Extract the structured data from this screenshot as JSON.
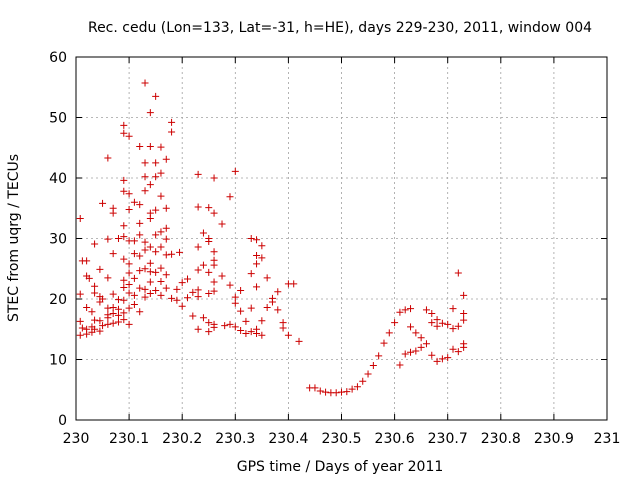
{
  "chart_data": {
    "type": "scatter",
    "title": "Rec. cedu (Lon=133, Lat=-31, h=HE), days 229-230, 2011, window 004",
    "xlabel": "GPS time / Days of year 2011",
    "ylabel": "STEC from uqrg / TECUs",
    "xlim": [
      230,
      231
    ],
    "ylim": [
      0,
      60
    ],
    "xticks": [
      230,
      230.1,
      230.2,
      230.3,
      230.4,
      230.5,
      230.6,
      230.7,
      230.8,
      230.9,
      231
    ],
    "xtick_labels": [
      "230",
      "230.1",
      "230.2",
      "230.3",
      "230.4",
      "230.5",
      "230.6",
      "230.7",
      "230.8",
      "230.9",
      "231"
    ],
    "yticks": [
      0,
      10,
      20,
      30,
      40,
      50,
      60
    ],
    "ytick_labels": [
      "0",
      "10",
      "20",
      "30",
      "40",
      "50",
      "60"
    ],
    "grid": true,
    "marker": "+",
    "color": "#cc0000",
    "points": [
      [
        230.008,
        33.3
      ],
      [
        230.008,
        20.8
      ],
      [
        230.008,
        16.3
      ],
      [
        230.008,
        14.0
      ],
      [
        230.012,
        26.3
      ],
      [
        230.012,
        15.2
      ],
      [
        230.02,
        26.3
      ],
      [
        230.02,
        23.8
      ],
      [
        230.02,
        18.6
      ],
      [
        230.02,
        15.0
      ],
      [
        230.02,
        14.2
      ],
      [
        230.025,
        23.4
      ],
      [
        230.03,
        17.9
      ],
      [
        230.03,
        15.4
      ],
      [
        230.03,
        14.5
      ],
      [
        230.035,
        29.1
      ],
      [
        230.035,
        22.1
      ],
      [
        230.035,
        21.0
      ],
      [
        230.035,
        16.5
      ],
      [
        230.035,
        15.0
      ],
      [
        230.045,
        24.9
      ],
      [
        230.045,
        20.4
      ],
      [
        230.045,
        19.5
      ],
      [
        230.045,
        16.4
      ],
      [
        230.045,
        14.7
      ],
      [
        230.05,
        35.8
      ],
      [
        230.05,
        20.0
      ],
      [
        230.05,
        15.6
      ],
      [
        230.06,
        43.3
      ],
      [
        230.06,
        29.9
      ],
      [
        230.06,
        23.5
      ],
      [
        230.06,
        18.5
      ],
      [
        230.06,
        17.4
      ],
      [
        230.06,
        16.9
      ],
      [
        230.06,
        15.8
      ],
      [
        230.07,
        35.0
      ],
      [
        230.07,
        34.2
      ],
      [
        230.07,
        27.5
      ],
      [
        230.07,
        20.8
      ],
      [
        230.07,
        18.6
      ],
      [
        230.07,
        17.6
      ],
      [
        230.07,
        16.0
      ],
      [
        230.08,
        30.0
      ],
      [
        230.08,
        19.9
      ],
      [
        230.08,
        18.3
      ],
      [
        230.08,
        17.3
      ],
      [
        230.08,
        16.2
      ],
      [
        230.09,
        48.7
      ],
      [
        230.09,
        47.4
      ],
      [
        230.09,
        39.6
      ],
      [
        230.09,
        37.8
      ],
      [
        230.09,
        32.1
      ],
      [
        230.09,
        30.3
      ],
      [
        230.09,
        26.6
      ],
      [
        230.09,
        23.1
      ],
      [
        230.09,
        21.9
      ],
      [
        230.09,
        19.8
      ],
      [
        230.09,
        17.7
      ],
      [
        230.09,
        16.6
      ],
      [
        230.1,
        46.9
      ],
      [
        230.1,
        37.4
      ],
      [
        230.1,
        34.8
      ],
      [
        230.1,
        29.6
      ],
      [
        230.1,
        25.8
      ],
      [
        230.1,
        24.3
      ],
      [
        230.1,
        22.4
      ],
      [
        230.1,
        21.0
      ],
      [
        230.1,
        18.5
      ],
      [
        230.1,
        15.8
      ],
      [
        230.11,
        36.0
      ],
      [
        230.11,
        29.6
      ],
      [
        230.11,
        27.5
      ],
      [
        230.11,
        23.4
      ],
      [
        230.11,
        20.6
      ],
      [
        230.11,
        19.1
      ],
      [
        230.12,
        45.2
      ],
      [
        230.12,
        35.6
      ],
      [
        230.12,
        32.5
      ],
      [
        230.12,
        30.6
      ],
      [
        230.12,
        27.1
      ],
      [
        230.12,
        24.7
      ],
      [
        230.12,
        21.8
      ],
      [
        230.12,
        17.9
      ],
      [
        230.13,
        55.7
      ],
      [
        230.13,
        42.5
      ],
      [
        230.13,
        40.2
      ],
      [
        230.13,
        37.9
      ],
      [
        230.13,
        29.4
      ],
      [
        230.13,
        28.1
      ],
      [
        230.13,
        25.0
      ],
      [
        230.13,
        21.6
      ],
      [
        230.13,
        20.3
      ],
      [
        230.14,
        50.8
      ],
      [
        230.14,
        45.2
      ],
      [
        230.14,
        38.9
      ],
      [
        230.14,
        34.2
      ],
      [
        230.14,
        33.3
      ],
      [
        230.14,
        28.6
      ],
      [
        230.14,
        25.9
      ],
      [
        230.14,
        24.5
      ],
      [
        230.14,
        22.8
      ],
      [
        230.14,
        20.9
      ],
      [
        230.15,
        53.5
      ],
      [
        230.15,
        42.5
      ],
      [
        230.15,
        40.2
      ],
      [
        230.15,
        34.7
      ],
      [
        230.15,
        30.6
      ],
      [
        230.15,
        27.8
      ],
      [
        230.15,
        24.4
      ],
      [
        230.15,
        21.4
      ],
      [
        230.16,
        45.1
      ],
      [
        230.16,
        40.8
      ],
      [
        230.16,
        37.0
      ],
      [
        230.16,
        31.1
      ],
      [
        230.16,
        28.6
      ],
      [
        230.16,
        25.1
      ],
      [
        230.16,
        22.9
      ],
      [
        230.16,
        20.6
      ],
      [
        230.17,
        43.1
      ],
      [
        230.17,
        35.0
      ],
      [
        230.17,
        31.7
      ],
      [
        230.17,
        29.9
      ],
      [
        230.17,
        27.3
      ],
      [
        230.17,
        24.0
      ],
      [
        230.17,
        21.8
      ],
      [
        230.18,
        49.2
      ],
      [
        230.18,
        47.6
      ],
      [
        230.18,
        27.4
      ],
      [
        230.18,
        20.1
      ],
      [
        230.19,
        21.6
      ],
      [
        230.19,
        19.8
      ],
      [
        230.195,
        27.7
      ],
      [
        230.2,
        22.7
      ],
      [
        230.2,
        18.8
      ],
      [
        230.21,
        23.3
      ],
      [
        230.21,
        20.2
      ],
      [
        230.22,
        21.1
      ],
      [
        230.22,
        17.2
      ],
      [
        230.23,
        40.6
      ],
      [
        230.23,
        35.2
      ],
      [
        230.23,
        28.6
      ],
      [
        230.23,
        24.8
      ],
      [
        230.23,
        21.5
      ],
      [
        230.23,
        20.4
      ],
      [
        230.23,
        15.0
      ],
      [
        230.24,
        30.9
      ],
      [
        230.24,
        25.6
      ],
      [
        230.24,
        16.9
      ],
      [
        230.25,
        35.1
      ],
      [
        230.25,
        30.0
      ],
      [
        230.25,
        29.5
      ],
      [
        230.25,
        24.4
      ],
      [
        230.25,
        20.9
      ],
      [
        230.25,
        16.1
      ],
      [
        230.25,
        14.6
      ],
      [
        230.26,
        40.0
      ],
      [
        230.26,
        34.2
      ],
      [
        230.26,
        27.8
      ],
      [
        230.26,
        26.4
      ],
      [
        230.26,
        25.6
      ],
      [
        230.26,
        22.8
      ],
      [
        230.26,
        21.3
      ],
      [
        230.26,
        15.8
      ],
      [
        230.26,
        15.3
      ],
      [
        230.275,
        32.4
      ],
      [
        230.275,
        23.8
      ],
      [
        230.28,
        15.6
      ],
      [
        230.29,
        36.9
      ],
      [
        230.29,
        22.3
      ],
      [
        230.29,
        15.8
      ],
      [
        230.3,
        41.1
      ],
      [
        230.3,
        20.3
      ],
      [
        230.3,
        19.3
      ],
      [
        230.3,
        15.4
      ],
      [
        230.31,
        21.4
      ],
      [
        230.31,
        18.0
      ],
      [
        230.31,
        14.8
      ],
      [
        230.32,
        16.3
      ],
      [
        230.32,
        14.3
      ],
      [
        230.33,
        30.0
      ],
      [
        230.33,
        24.2
      ],
      [
        230.33,
        18.5
      ],
      [
        230.33,
        14.6
      ],
      [
        230.34,
        29.8
      ],
      [
        230.34,
        27.2
      ],
      [
        230.34,
        25.8
      ],
      [
        230.34,
        22.0
      ],
      [
        230.34,
        15.0
      ],
      [
        230.34,
        14.3
      ],
      [
        230.35,
        28.8
      ],
      [
        230.35,
        26.8
      ],
      [
        230.35,
        16.4
      ],
      [
        230.35,
        14.0
      ],
      [
        230.36,
        23.5
      ],
      [
        230.36,
        18.6
      ],
      [
        230.37,
        20.1
      ],
      [
        230.37,
        19.5
      ],
      [
        230.38,
        21.2
      ],
      [
        230.38,
        18.2
      ],
      [
        230.39,
        16.1
      ],
      [
        230.39,
        15.2
      ],
      [
        230.4,
        22.5
      ],
      [
        230.4,
        14.0
      ],
      [
        230.41,
        22.5
      ],
      [
        230.42,
        13.0
      ],
      [
        230.44,
        5.3
      ],
      [
        230.45,
        5.3
      ],
      [
        230.46,
        4.8
      ],
      [
        230.47,
        4.6
      ],
      [
        230.48,
        4.5
      ],
      [
        230.49,
        4.5
      ],
      [
        230.5,
        4.6
      ],
      [
        230.51,
        4.7
      ],
      [
        230.52,
        5.1
      ],
      [
        230.53,
        5.5
      ],
      [
        230.54,
        6.4
      ],
      [
        230.55,
        7.6
      ],
      [
        230.56,
        9.0
      ],
      [
        230.57,
        10.6
      ],
      [
        230.58,
        12.7
      ],
      [
        230.59,
        14.4
      ],
      [
        230.6,
        16.1
      ],
      [
        230.61,
        17.8
      ],
      [
        230.61,
        9.1
      ],
      [
        230.62,
        18.2
      ],
      [
        230.62,
        10.9
      ],
      [
        230.63,
        18.4
      ],
      [
        230.63,
        15.4
      ],
      [
        230.63,
        11.2
      ],
      [
        230.64,
        14.4
      ],
      [
        230.64,
        11.4
      ],
      [
        230.65,
        13.6
      ],
      [
        230.65,
        12.0
      ],
      [
        230.66,
        18.2
      ],
      [
        230.66,
        12.6
      ],
      [
        230.67,
        17.6
      ],
      [
        230.67,
        16.1
      ],
      [
        230.67,
        10.7
      ],
      [
        230.68,
        16.6
      ],
      [
        230.68,
        15.5
      ],
      [
        230.68,
        9.7
      ],
      [
        230.69,
        16.0
      ],
      [
        230.69,
        10.1
      ],
      [
        230.7,
        15.8
      ],
      [
        230.7,
        10.3
      ],
      [
        230.71,
        18.4
      ],
      [
        230.71,
        15.1
      ],
      [
        230.71,
        11.7
      ],
      [
        230.72,
        24.3
      ],
      [
        230.72,
        15.5
      ],
      [
        230.72,
        11.3
      ],
      [
        230.73,
        20.6
      ],
      [
        230.73,
        17.6
      ],
      [
        230.73,
        16.5
      ],
      [
        230.73,
        12.6
      ],
      [
        230.73,
        12.0
      ]
    ]
  }
}
